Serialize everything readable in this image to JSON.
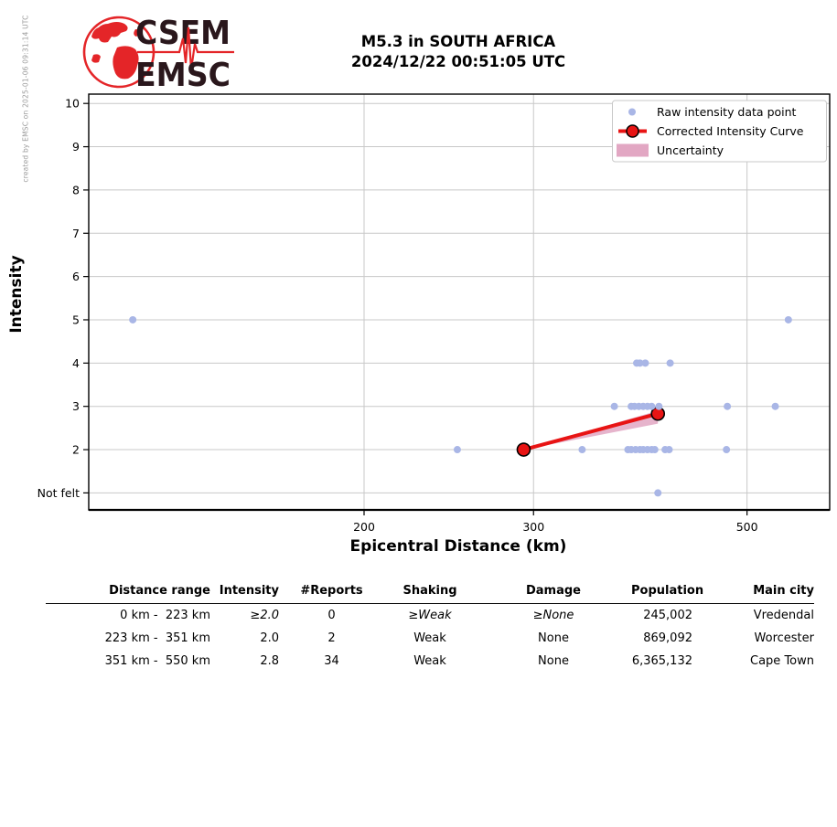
{
  "credit": "created by EMSC on 2025-01-06 09:31:14 UTC",
  "logo": {
    "org_top": "CSEM",
    "org_bottom": "EMSC",
    "red": "#e42528",
    "dark": "#2a171c"
  },
  "header": {
    "title_line1": "M5.3 in SOUTH AFRICA",
    "title_line2": "2024/12/22 00:51:05 UTC"
  },
  "chart_data": {
    "type": "scatter",
    "title": "M5.3 in SOUTH AFRICA 2024/12/22 00:51:05 UTC",
    "xlabel": "Epicentral Distance (km)",
    "ylabel": "Intensity",
    "x_scale": "log",
    "x_ticks": [
      200,
      300,
      500
    ],
    "x_range_km": [
      103,
      610
    ],
    "ylim": [
      0.6,
      10.2
    ],
    "grid": true,
    "y_ticks": [
      {
        "value": 1,
        "label": "Not felt"
      },
      {
        "value": 2,
        "label": "2"
      },
      {
        "value": 3,
        "label": "3"
      },
      {
        "value": 4,
        "label": "4"
      },
      {
        "value": 5,
        "label": "5"
      },
      {
        "value": 6,
        "label": "6"
      },
      {
        "value": 7,
        "label": "7"
      },
      {
        "value": 8,
        "label": "8"
      },
      {
        "value": 9,
        "label": "9"
      },
      {
        "value": 10,
        "label": "10"
      }
    ],
    "raw_points": [
      [
        115,
        5
      ],
      [
        552,
        5
      ],
      [
        384,
        4
      ],
      [
        387,
        4
      ],
      [
        392,
        4
      ],
      [
        416,
        4
      ],
      [
        364,
        3
      ],
      [
        379,
        3
      ],
      [
        382,
        3
      ],
      [
        386,
        3
      ],
      [
        390,
        3
      ],
      [
        394,
        3
      ],
      [
        398,
        3
      ],
      [
        405,
        3
      ],
      [
        477,
        3
      ],
      [
        535,
        3
      ],
      [
        250,
        2
      ],
      [
        337,
        2
      ],
      [
        376,
        2
      ],
      [
        379,
        2
      ],
      [
        383,
        2
      ],
      [
        387,
        2
      ],
      [
        390,
        2
      ],
      [
        394,
        2
      ],
      [
        398,
        2
      ],
      [
        401,
        2
      ],
      [
        411,
        2
      ],
      [
        415,
        2
      ],
      [
        476,
        2
      ],
      [
        404,
        1
      ]
    ],
    "corrected_curve": [
      [
        293,
        2.0
      ],
      [
        404,
        2.83
      ]
    ],
    "uncertainty_polygon": [
      [
        293,
        2.0
      ],
      [
        404,
        2.9
      ],
      [
        404,
        2.6
      ]
    ],
    "legend": [
      {
        "label": "Raw intensity data point",
        "type": "dot"
      },
      {
        "label": "Corrected Intensity Curve",
        "type": "line-marker"
      },
      {
        "label": "Uncertainty",
        "type": "patch"
      }
    ],
    "colors": {
      "raw_point": "#a9b6e6",
      "curve": "#e81414",
      "curve_marker_edge": "#000000",
      "uncertainty": "#e2a7c3",
      "grid": "#c8c8c8",
      "spine": "#000000",
      "legend_border": "#c9c9c9"
    }
  },
  "table": {
    "headers": [
      "Distance range",
      "Intensity",
      "#Reports",
      "Shaking",
      "Damage",
      "Population",
      "Main city"
    ],
    "rows": [
      {
        "cells": [
          "0 km -  223 km",
          "≥2.0",
          "0",
          "≥Weak",
          "≥None",
          "245,002",
          "Vredendal"
        ],
        "italic": [
          false,
          true,
          false,
          true,
          true,
          false,
          false
        ]
      },
      {
        "cells": [
          "223 km -  351 km",
          "2.0",
          "2",
          "Weak",
          "None",
          "869,092",
          "Worcester"
        ],
        "italic": [
          false,
          false,
          false,
          false,
          false,
          false,
          false
        ]
      },
      {
        "cells": [
          "351 km -  550 km",
          "2.8",
          "34",
          "Weak",
          "None",
          "6,365,132",
          "Cape Town"
        ],
        "italic": [
          false,
          false,
          false,
          false,
          false,
          false,
          false
        ]
      }
    ],
    "col_align": [
      "r",
      "r",
      "c",
      "c",
      "c",
      "r",
      "r"
    ]
  }
}
